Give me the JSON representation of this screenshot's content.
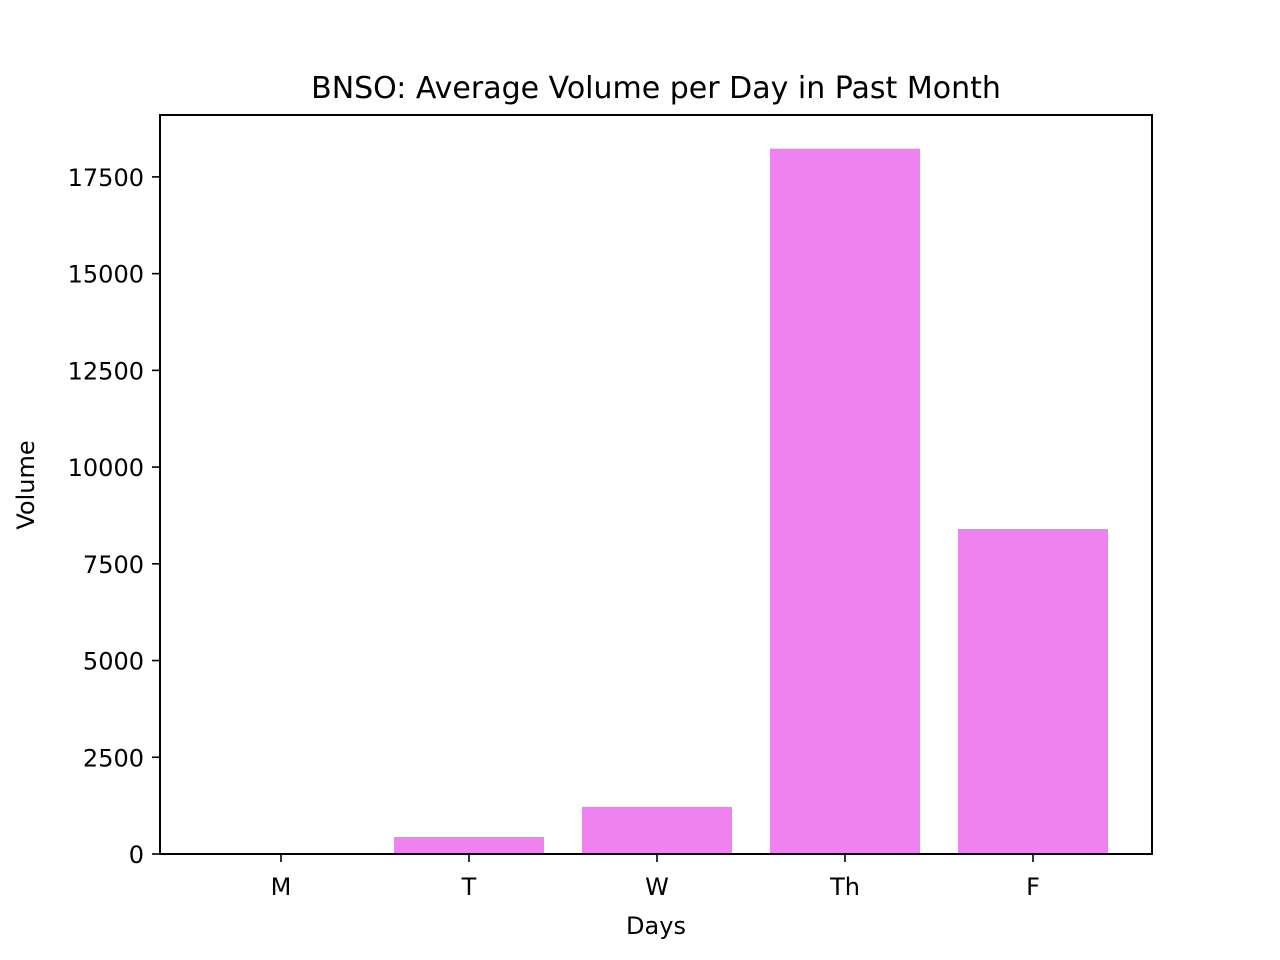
{
  "chart_data": {
    "type": "bar",
    "title": "BNSO: Average Volume per Day in Past Month",
    "xlabel": "Days",
    "ylabel": "Volume",
    "categories": [
      "M",
      "T",
      "W",
      "Th",
      "F"
    ],
    "values": [
      0,
      440,
      1220,
      18230,
      8400
    ],
    "ylim": [
      0,
      19100
    ],
    "yticks": [
      0,
      2500,
      5000,
      7500,
      10000,
      12500,
      15000,
      17500
    ],
    "bar_color": "#ee82ee",
    "grid": false,
    "legend": null
  }
}
